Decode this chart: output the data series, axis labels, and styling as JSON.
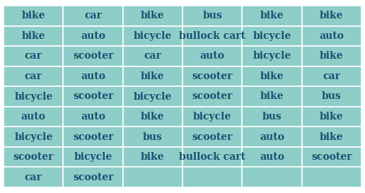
{
  "table_data": [
    [
      "bike",
      "car",
      "bike",
      "bus",
      "bike",
      "bike"
    ],
    [
      "bike",
      "auto",
      "bicycle",
      "bullock cart",
      "bicycle",
      "auto"
    ],
    [
      "car",
      "scooter",
      "car",
      "auto",
      "bicycle",
      "bike"
    ],
    [
      "car",
      "auto",
      "bike",
      "scooter",
      "bike",
      "car"
    ],
    [
      "bicycle",
      "scooter",
      "bicycle",
      "scooter",
      "bike",
      "bus"
    ],
    [
      "auto",
      "auto",
      "bike",
      "bicycle",
      "bus",
      "bike"
    ],
    [
      "bicycle",
      "scooter",
      "bus",
      "scooter",
      "auto",
      "bike"
    ],
    [
      "scooter",
      "bicycle",
      "bike",
      "bullock cart",
      "auto",
      "scooter"
    ],
    [
      "car",
      "scooter",
      "",
      "",
      "",
      ""
    ]
  ],
  "num_cols": 6,
  "num_rows": 9,
  "bg_color": "#8DCEC8",
  "text_color": "#1B4F72",
  "grid_color": "#FFFFFF",
  "outer_bg": "#FFFFFF",
  "font_size": 10,
  "font_weight": "bold"
}
